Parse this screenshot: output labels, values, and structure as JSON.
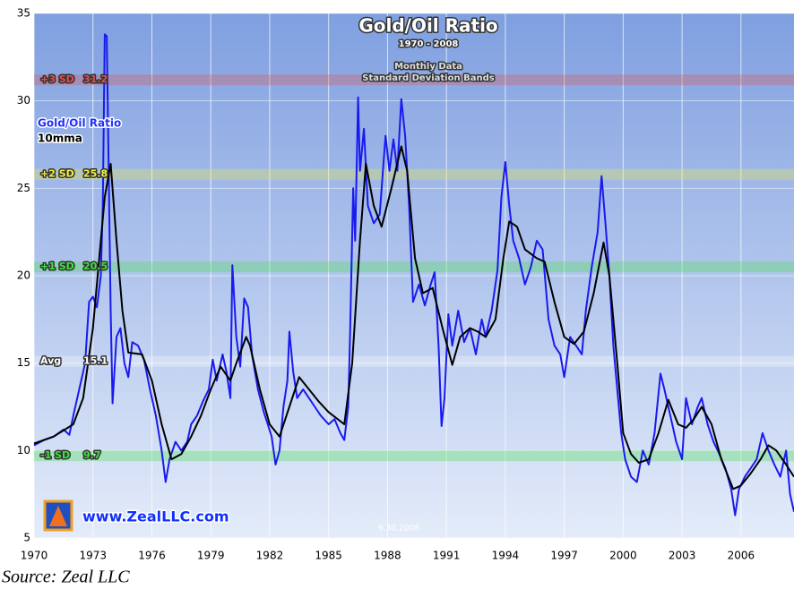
{
  "chart_data": {
    "type": "line",
    "title": "Gold/Oil Ratio",
    "subtitle": "1970 - 2008",
    "annotations": [
      "Monthly Data",
      "Standard Deviation Bands"
    ],
    "date_label": "9.30.2008",
    "logo_text": "www.ZealLLC.com",
    "source": "Source: Zeal LLC",
    "xlim": [
      1970,
      2008.7
    ],
    "xticks": [
      1970,
      1973,
      1976,
      1979,
      1982,
      1985,
      1988,
      1991,
      1994,
      1997,
      2000,
      2003,
      2006
    ],
    "ylim": [
      5,
      35
    ],
    "yticks": [
      5,
      10,
      15,
      20,
      25,
      30,
      35
    ],
    "grid": true,
    "bands": [
      {
        "name": "+3 SD",
        "value": 31.2,
        "value_label": "31.2",
        "color": "#e05050"
      },
      {
        "name": "+2 SD",
        "value": 25.8,
        "value_label": "25.8",
        "color": "#f0f040"
      },
      {
        "name": "+1 SD",
        "value": 20.5,
        "value_label": "20.5",
        "color": "#40e040"
      },
      {
        "name": "Avg",
        "value": 15.1,
        "value_label": "15.1",
        "color": "#ffffff"
      },
      {
        "name": "-1 SD",
        "value": 9.7,
        "value_label": "9.7",
        "color": "#40e040"
      }
    ],
    "series": [
      {
        "name": "Gold/Oil Ratio",
        "color": "#1a1aee",
        "x": [
          1970.0,
          1970.5,
          1971.0,
          1971.5,
          1971.8,
          1972.0,
          1972.3,
          1972.6,
          1972.8,
          1973.0,
          1973.2,
          1973.4,
          1973.5,
          1973.6,
          1973.7,
          1973.8,
          1973.9,
          1974.0,
          1974.2,
          1974.4,
          1974.6,
          1974.8,
          1975.0,
          1975.3,
          1975.6,
          1975.9,
          1976.2,
          1976.5,
          1976.7,
          1976.9,
          1977.2,
          1977.5,
          1977.8,
          1978.0,
          1978.3,
          1978.6,
          1978.9,
          1979.1,
          1979.3,
          1979.6,
          1979.8,
          1980.0,
          1980.1,
          1980.3,
          1980.5,
          1980.7,
          1980.9,
          1981.1,
          1981.4,
          1981.7,
          1981.9,
          1982.1,
          1982.3,
          1982.5,
          1982.7,
          1982.9,
          1983.0,
          1983.2,
          1983.4,
          1983.7,
          1984.0,
          1984.3,
          1984.6,
          1985.0,
          1985.3,
          1985.6,
          1985.8,
          1986.0,
          1986.1,
          1986.25,
          1986.35,
          1986.5,
          1986.6,
          1986.8,
          1987.0,
          1987.3,
          1987.6,
          1987.9,
          1988.1,
          1988.3,
          1988.5,
          1988.7,
          1988.9,
          1989.1,
          1989.3,
          1989.6,
          1989.9,
          1990.2,
          1990.4,
          1990.6,
          1990.75,
          1990.9,
          1991.1,
          1991.3,
          1991.6,
          1991.9,
          1992.2,
          1992.5,
          1992.8,
          1993.0,
          1993.3,
          1993.6,
          1993.8,
          1994.0,
          1994.2,
          1994.4,
          1994.7,
          1995.0,
          1995.3,
          1995.6,
          1995.9,
          1996.2,
          1996.5,
          1996.8,
          1997.0,
          1997.3,
          1997.6,
          1997.9,
          1998.1,
          1998.4,
          1998.7,
          1998.9,
          1999.1,
          1999.3,
          1999.5,
          1999.7,
          1999.9,
          2000.1,
          2000.4,
          2000.7,
          2001.0,
          2001.3,
          2001.6,
          2001.9,
          2002.1,
          2002.4,
          2002.7,
          2003.0,
          2003.2,
          2003.5,
          2003.8,
          2004.0,
          2004.3,
          2004.6,
          2004.9,
          2005.2,
          2005.5,
          2005.7,
          2005.9,
          2006.2,
          2006.5,
          2006.8,
          2007.1,
          2007.4,
          2007.7,
          2008.0,
          2008.3,
          2008.5,
          2008.7
        ],
        "values": [
          10.3,
          10.6,
          10.8,
          11.2,
          10.9,
          12,
          13.5,
          15,
          18.5,
          18.8,
          18.2,
          20,
          24,
          33.8,
          33.7,
          26,
          18,
          12.7,
          16.5,
          17,
          15,
          14.2,
          16.2,
          16,
          15.2,
          13.5,
          12,
          10,
          8.2,
          9.5,
          10.5,
          10,
          10.5,
          11.5,
          12,
          12.8,
          13.5,
          15.2,
          14,
          15.5,
          14.5,
          13,
          20.6,
          16.5,
          14.8,
          18.7,
          18.2,
          15.5,
          13.5,
          12.2,
          11.5,
          10.8,
          9.2,
          10,
          12.5,
          14,
          16.8,
          14.5,
          13,
          13.5,
          13,
          12.5,
          12,
          11.5,
          11.8,
          11,
          10.6,
          12.5,
          17,
          25,
          22,
          30.2,
          26,
          28.4,
          24,
          23,
          23.5,
          28,
          26,
          27.8,
          26,
          30.1,
          28,
          24,
          18.5,
          19.5,
          18.3,
          19.5,
          20.2,
          16,
          11.4,
          13,
          17.8,
          16,
          18,
          16.2,
          17,
          15.5,
          17.5,
          16.5,
          18,
          20.3,
          24.5,
          26.5,
          24,
          22,
          21,
          19.5,
          20.5,
          22,
          21.5,
          17.5,
          16,
          15.5,
          14.2,
          16.5,
          16,
          15.5,
          18,
          20.5,
          22.5,
          25.7,
          23,
          20,
          16,
          13.5,
          11,
          9.5,
          8.5,
          8.2,
          10,
          9.2,
          11,
          14.4,
          13.5,
          12,
          10.5,
          9.5,
          13,
          11.5,
          12.5,
          13,
          11.5,
          10.5,
          9.8,
          9,
          7.8,
          6.3,
          7.8,
          8.5,
          9,
          9.5,
          11,
          10,
          9.2,
          8.5,
          10,
          7.5,
          6.5
        ]
      },
      {
        "name": "10mma",
        "color": "#000000",
        "x": [
          1970,
          1971,
          1972,
          1972.5,
          1973,
          1973.4,
          1973.6,
          1973.9,
          1974.2,
          1974.5,
          1974.8,
          1975.5,
          1976,
          1976.5,
          1977,
          1977.5,
          1978,
          1978.5,
          1979,
          1979.5,
          1980,
          1980.3,
          1980.8,
          1981,
          1981.5,
          1982,
          1982.5,
          1983,
          1983.5,
          1984,
          1984.5,
          1985,
          1985.8,
          1986.2,
          1986.6,
          1986.9,
          1987.3,
          1987.7,
          1988.2,
          1988.7,
          1989,
          1989.4,
          1989.8,
          1990.3,
          1990.8,
          1991.3,
          1991.7,
          1992.2,
          1992.6,
          1993,
          1993.5,
          1993.9,
          1994.2,
          1994.6,
          1995,
          1995.6,
          1996,
          1996.5,
          1997,
          1997.5,
          1998,
          1998.5,
          1999,
          1999.3,
          1999.7,
          2000,
          2000.4,
          2000.8,
          2001.3,
          2001.8,
          2002.3,
          2002.8,
          2003.2,
          2003.6,
          2004,
          2004.5,
          2005,
          2005.6,
          2006,
          2006.5,
          2007,
          2007.4,
          2007.8,
          2008.3,
          2008.7
        ],
        "values": [
          10.4,
          10.8,
          11.5,
          13,
          17,
          22,
          24.5,
          26.4,
          22,
          18,
          15.6,
          15.5,
          14,
          11.5,
          9.5,
          9.8,
          10.8,
          12,
          13.5,
          14.8,
          14,
          15,
          16.5,
          16,
          13.5,
          11.5,
          10.8,
          12.5,
          14.2,
          13.5,
          12.8,
          12.2,
          11.5,
          15,
          22,
          26.4,
          24,
          22.8,
          25,
          27.4,
          26,
          21,
          19,
          19.3,
          17,
          14.9,
          16.5,
          17,
          16.8,
          16.5,
          17.5,
          21,
          23.1,
          22.8,
          21.5,
          21,
          20.8,
          18.5,
          16.5,
          16.1,
          16.8,
          19,
          21.9,
          20,
          15,
          11,
          9.8,
          9.3,
          9.5,
          11,
          12.9,
          11.5,
          11.3,
          11.8,
          12.5,
          11.5,
          9.5,
          7.8,
          8,
          8.7,
          9.5,
          10.3,
          10,
          9.2,
          8.5
        ]
      }
    ]
  }
}
